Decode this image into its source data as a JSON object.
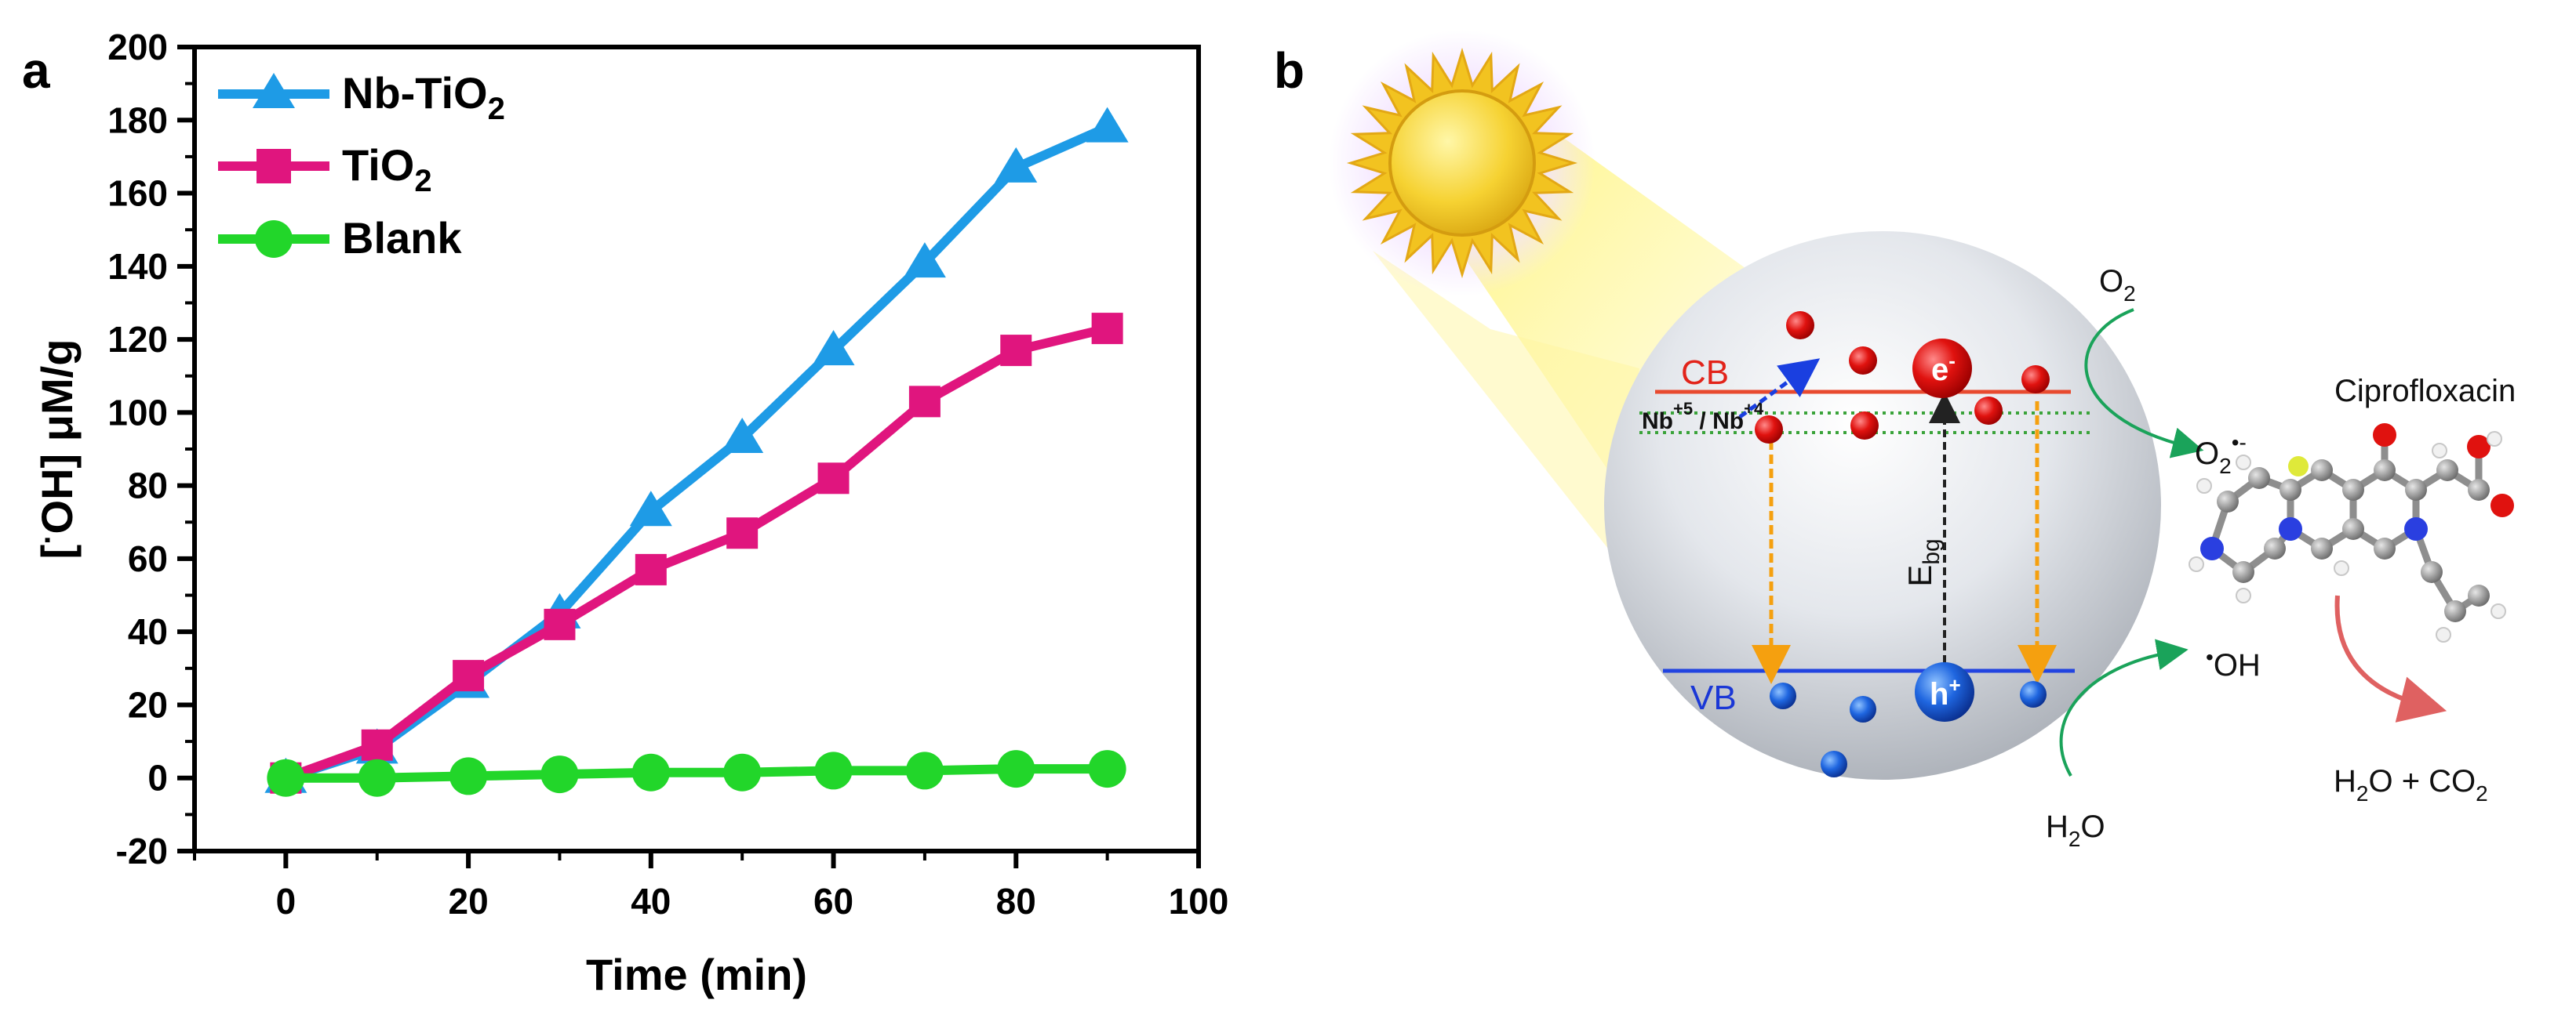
{
  "panels": {
    "a": "a",
    "b": "b"
  },
  "chart_data": {
    "type": "line",
    "xlabel": "Time (min)",
    "ylabel_main": "[",
    "ylabel_dot": "·",
    "ylabel_rest": "OH] μM/g",
    "xlim": [
      -10,
      100
    ],
    "ylim": [
      -20,
      200
    ],
    "x_ticks": [
      0,
      20,
      40,
      60,
      80,
      100
    ],
    "y_ticks": [
      -20,
      0,
      20,
      40,
      60,
      80,
      100,
      120,
      140,
      160,
      180,
      200
    ],
    "x": [
      0,
      10,
      20,
      30,
      40,
      50,
      60,
      70,
      80,
      90
    ],
    "series": [
      {
        "name": "Nb-TiO",
        "sub": "2",
        "color": "#1E9BE6",
        "marker": "triangle",
        "values": [
          0,
          8,
          26,
          45,
          73,
          93,
          117,
          141,
          167,
          178
        ]
      },
      {
        "name": "TiO",
        "sub": "2",
        "color": "#E0157E",
        "marker": "square",
        "values": [
          0,
          9,
          28,
          42,
          57,
          67,
          82,
          103,
          117,
          123
        ]
      },
      {
        "name": "Blank",
        "sub": "",
        "color": "#22D62A",
        "marker": "circle",
        "values": [
          0,
          0,
          0.5,
          1,
          1.5,
          1.5,
          2,
          2,
          2.5,
          2.5
        ]
      }
    ],
    "legend_position": "top-left"
  },
  "diagram": {
    "cb_label": "CB",
    "vb_label": "VB",
    "nb5": "Nb",
    "nb5_sup": "+5",
    "slash": " / ",
    "nb4": "Nb",
    "nb4_sup": "+4",
    "electron": "e",
    "electron_sup": "-",
    "hole": "h",
    "hole_sup": "+",
    "ebg": "E",
    "ebg_sub": "bg",
    "o2": "O",
    "o2_sub": "2",
    "superoxide": "O",
    "superoxide_sub": "2",
    "superoxide_sup": "•-",
    "oh_dot": "•",
    "oh": "OH",
    "h2o": "H",
    "h2o_sub": "2",
    "h2o_o": "O",
    "molecule_name": "Ciprofloxacin",
    "products_h": "H",
    "products_h_sub": "2",
    "products_mid": "O + CO",
    "products_co_sub": "2"
  }
}
